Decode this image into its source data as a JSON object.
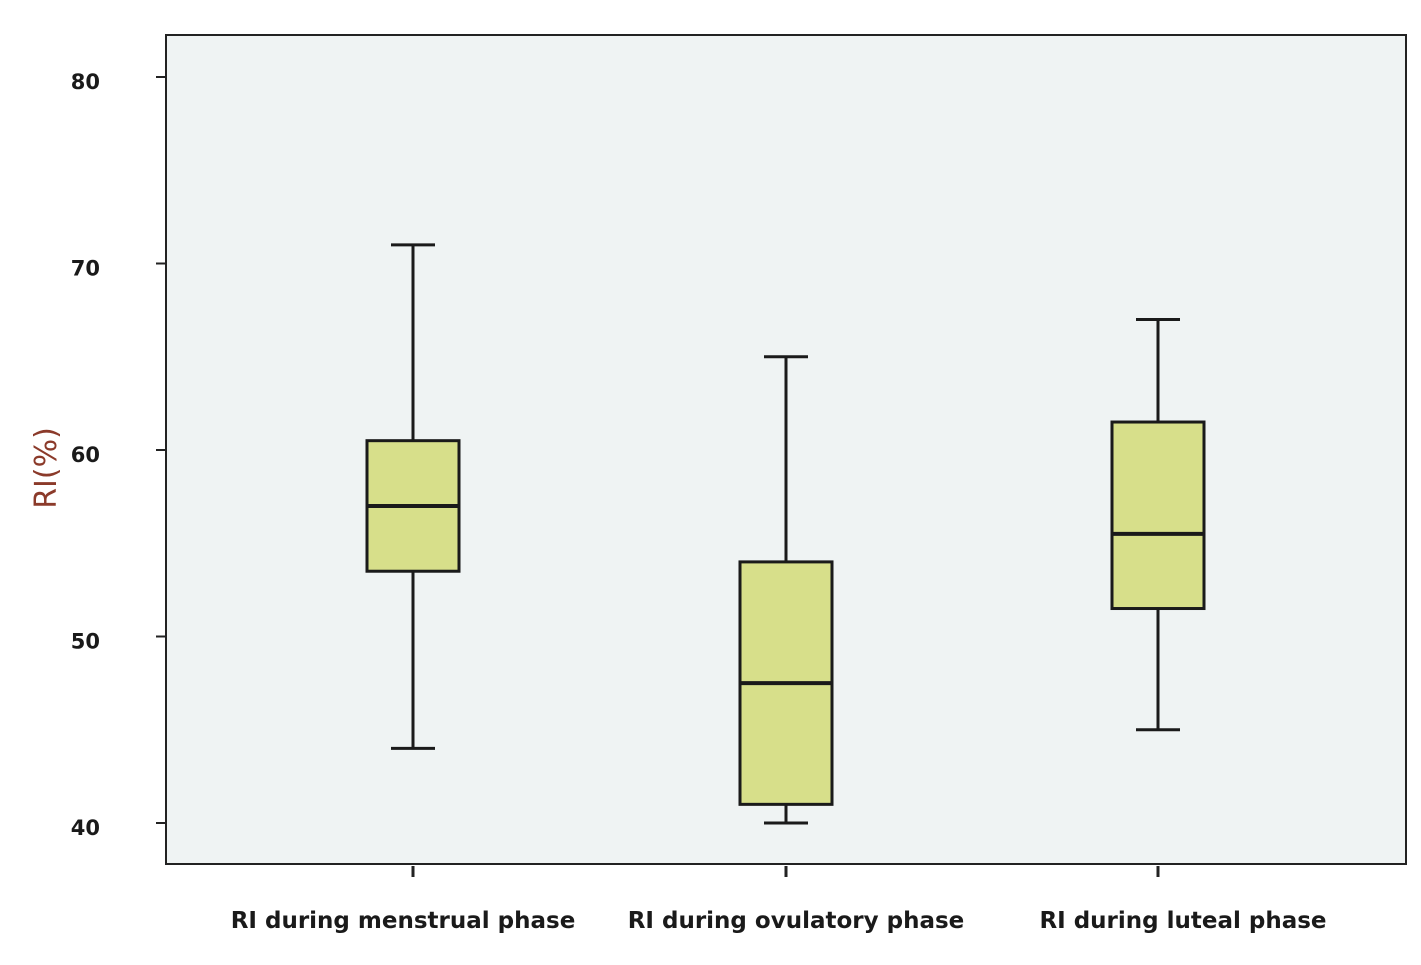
{
  "chart_data": {
    "type": "boxplot",
    "ylabel": "RI(%)",
    "xlabel": "",
    "ylim": [
      40,
      82
    ],
    "yticks": [
      40,
      50,
      60,
      70,
      80
    ],
    "grid": false,
    "legend": "none",
    "colors": {
      "plot_background": "#eff3f3",
      "box_fill": "#d7df8a",
      "line": "#1a1a1a",
      "ylabel": "#8b3a2a"
    },
    "categories": [
      "RI during menstrual phase",
      "RI during ovulatory phase",
      "RI during luteal phase"
    ],
    "boxes": [
      {
        "category": "RI during menstrual phase",
        "min": 44,
        "q1": 53.5,
        "median": 57,
        "q3": 60.5,
        "max": 71
      },
      {
        "category": "RI during ovulatory phase",
        "min": 40,
        "q1": 41,
        "median": 47.5,
        "q3": 54,
        "max": 65
      },
      {
        "category": "RI during luteal phase",
        "min": 45,
        "q1": 51.5,
        "median": 55.5,
        "q3": 61.5,
        "max": 67
      }
    ]
  }
}
